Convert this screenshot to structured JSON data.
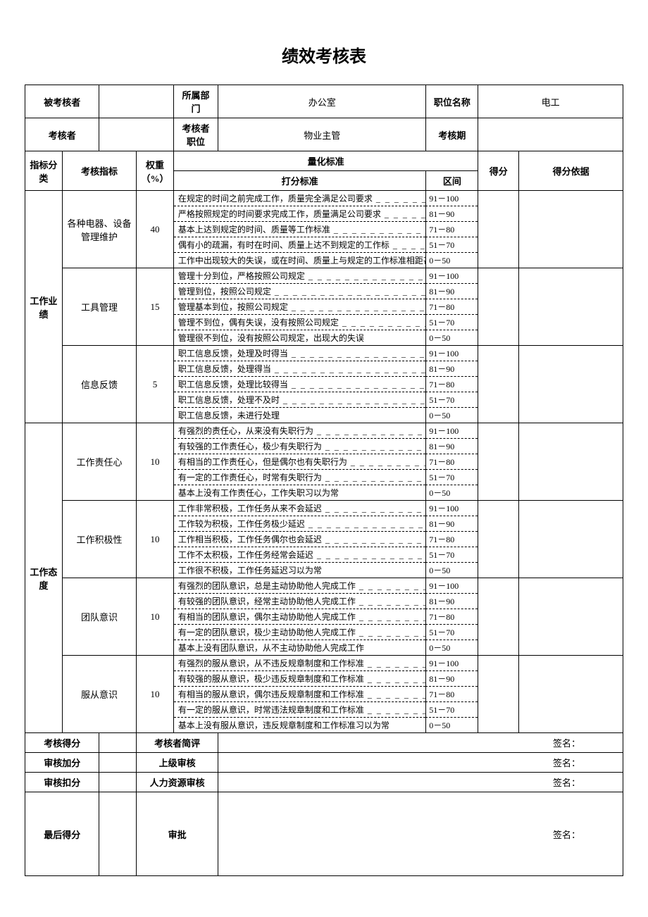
{
  "title": "绩效考核表",
  "header": {
    "assessee_label": "被考核者",
    "assessee_value": "",
    "dept_label": "所属部门",
    "dept_value": "办公室",
    "position_label": "职位名称",
    "position_value": "电工",
    "assessor_label": "考核者",
    "assessor_value": "",
    "assessor_pos_label": "考核者职位",
    "assessor_pos_value": "物业主管",
    "period_label": "考核期",
    "period_value": ""
  },
  "col_headers": {
    "cat": "指标分类",
    "indic": "考核指标",
    "weight": "权重（%）",
    "quant": "量化标准",
    "criteria": "打分标准",
    "range": "区间",
    "score": "得分",
    "basis": "得分依据"
  },
  "categories": [
    {
      "name": "工作业绩",
      "items": [
        {
          "name": "各种电器、设备管理维护",
          "weight": "40",
          "criteria": [
            {
              "desc": "在规定的时间之前完成工作，质量完全满足公司要求",
              "range": "91－100"
            },
            {
              "desc": "严格按照规定的时间要求完成工作，质量满足公司要求",
              "range": "81－90"
            },
            {
              "desc": "基本上达到规定的时间、质量等工作标准",
              "range": "71－80"
            },
            {
              "desc": "偶有小的疏漏，有时在时间、质量上达不到规定的工作标",
              "range": "51－70"
            },
            {
              "desc": "工作中出现较大的失误，或在时间、质量上与规定的工作标准相距甚远。",
              "range": "0－50"
            }
          ]
        },
        {
          "name": "工具管理",
          "weight": "15",
          "criteria": [
            {
              "desc": "管理十分到位，严格按照公司规定",
              "range": "91－100"
            },
            {
              "desc": "管理到位，按照公司规定",
              "range": "81－90"
            },
            {
              "desc": "管理基本到位，按照公司规定",
              "range": "71－80"
            },
            {
              "desc": "管理不到位，偶有失误，没有按照公司规定",
              "range": "51－70"
            },
            {
              "desc": "管理很不到位，没有按照公司规定，出现大的失误",
              "range": "0－50"
            }
          ]
        },
        {
          "name": "信息反馈",
          "weight": "5",
          "criteria": [
            {
              "desc": "职工信息反馈，处理及时得当",
              "range": "91－100"
            },
            {
              "desc": "职工信息反馈，处理得当",
              "range": "81－90"
            },
            {
              "desc": "职工信息反馈，处理比较得当",
              "range": "71－80"
            },
            {
              "desc": "职工信息反馈，处理不及时",
              "range": "51－70"
            },
            {
              "desc": "职工信息反馈，未进行处理",
              "range": "0－50"
            }
          ]
        }
      ]
    },
    {
      "name": "工作态度",
      "items": [
        {
          "name": "工作责任心",
          "weight": "10",
          "criteria": [
            {
              "desc": "有强烈的责任心，从来没有失职行为",
              "range": "91－100"
            },
            {
              "desc": "有较强的工作责任心，极少有失职行为",
              "range": "81－90"
            },
            {
              "desc": "有相当的工作责任心，但是偶尔也有失职行为",
              "range": "71－80"
            },
            {
              "desc": "有一定的工作责任心，时常有失职行为",
              "range": "51－70"
            },
            {
              "desc": "基本上没有工作责任心，工作失职习以为常",
              "range": "0－50"
            }
          ]
        },
        {
          "name": "工作积极性",
          "weight": "10",
          "criteria": [
            {
              "desc": "工作非常积极，工作任务从来不会延迟",
              "range": "91－100"
            },
            {
              "desc": "工作较为积极，工作任务极少延迟",
              "range": "81－90"
            },
            {
              "desc": "工作相当积极，工作任务偶尔也会延迟",
              "range": "71－80"
            },
            {
              "desc": "工作不太积极，工作任务经常会延迟",
              "range": "51－70"
            },
            {
              "desc": "工作很不积极，工作任务延迟习以为常",
              "range": "0－50"
            }
          ]
        },
        {
          "name": "团队意识",
          "weight": "10",
          "criteria": [
            {
              "desc": "有强烈的团队意识，总是主动协助他人完成工作",
              "range": "91－100"
            },
            {
              "desc": "有较强的团队意识，经常主动协助他人完成工作",
              "range": "81－90"
            },
            {
              "desc": "有相当的团队意识，偶尔主动协助他人完成工作",
              "range": "71－80"
            },
            {
              "desc": "有一定的团队意识，极少主动协助他人完成工作",
              "range": "51－70"
            },
            {
              "desc": "基本上没有团队意识，从不主动协助他人完成工作",
              "range": "0－50"
            }
          ]
        },
        {
          "name": "服从意识",
          "weight": "10",
          "criteria": [
            {
              "desc": "有强烈的服从意识，从不违反规章制度和工作标准",
              "range": "91－100"
            },
            {
              "desc": "有较强的服从意识，极少违反规章制度和工作标准",
              "range": "81－90"
            },
            {
              "desc": "有相当的服从意识，偶尔违反规章制度和工作标准",
              "range": "71－80"
            },
            {
              "desc": "有一定的服从意识，时常违法规章制度和工作标准",
              "range": "51－70"
            },
            {
              "desc": "基本上没有服从意识，违反规章制度和工作标准习以为常",
              "range": "0－50"
            }
          ]
        }
      ]
    }
  ],
  "footer": {
    "score_label": "考核得分",
    "assessor_review": "考核者简评",
    "bonus_label": "审核加分",
    "superior_review": "上级审核",
    "deduct_label": "审核扣分",
    "hr_review": "人力资源审核",
    "final_label": "最后得分",
    "approval": "审批",
    "signature": "签名："
  }
}
